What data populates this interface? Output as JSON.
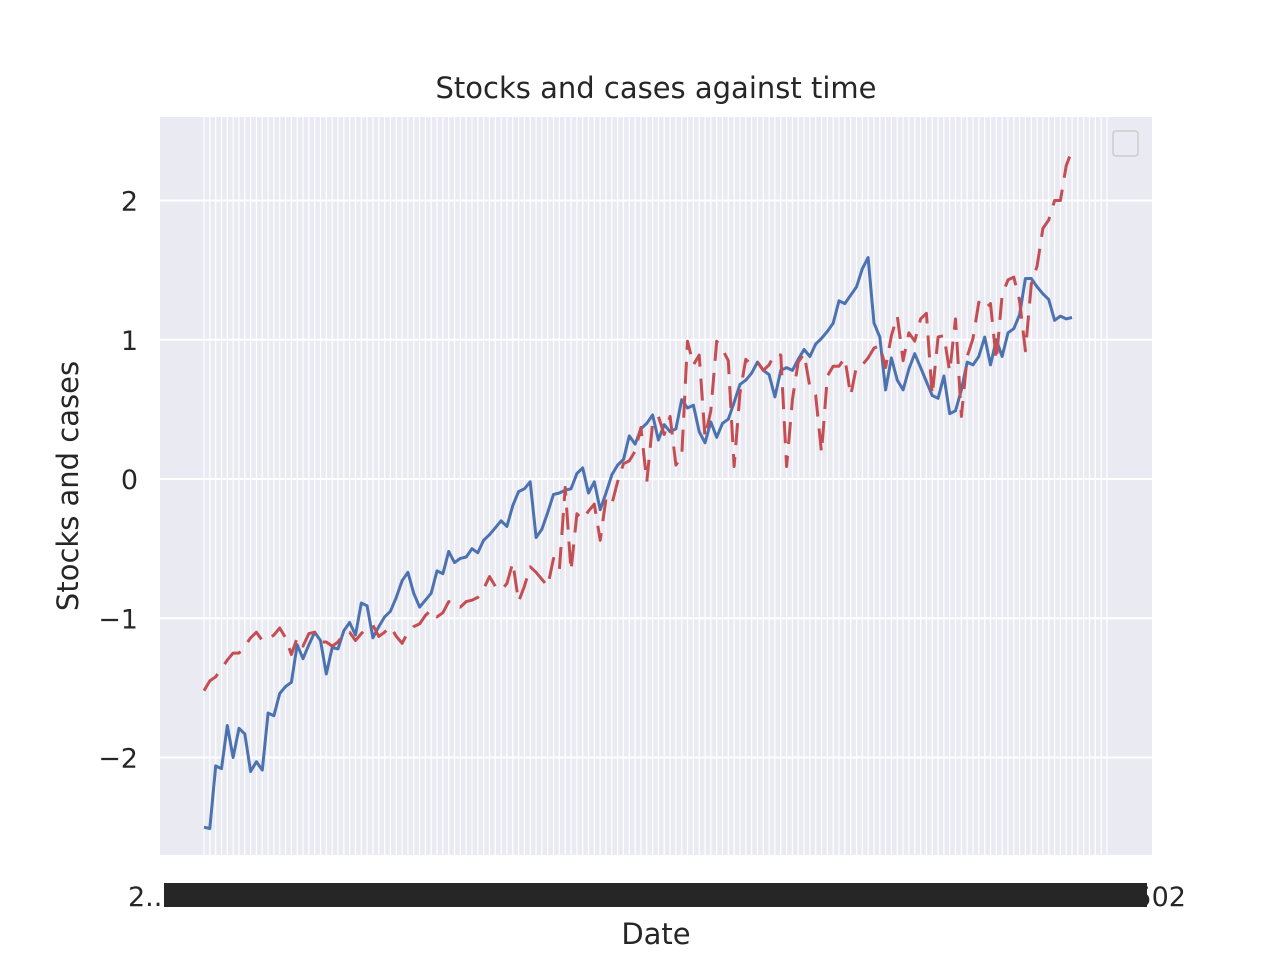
{
  "chart_data": {
    "type": "line",
    "title": "Stocks and cases against time",
    "xlabel": "Date",
    "ylabel": "Stocks and cases",
    "ylim": [
      -2.7,
      2.6
    ],
    "yticks": [
      -2,
      -1,
      0,
      1,
      2
    ],
    "ytick_labels": [
      "−2",
      "−1",
      "0",
      "1",
      "2"
    ],
    "grid": true,
    "legend": {
      "placement": "top-right",
      "entries": []
    },
    "x": {
      "count": 156,
      "first_label": "2...",
      "last_label": "...502",
      "note_overlap": true
    },
    "series": [
      {
        "color": "#4c72b0",
        "dashed": false,
        "values": [
          -2.5,
          -2.51,
          -2.06,
          -2.08,
          -1.77,
          -2.0,
          -1.79,
          -1.83,
          -2.1,
          -2.03,
          -2.09,
          -1.68,
          -1.7,
          -1.54,
          -1.49,
          -1.46,
          -1.19,
          -1.29,
          -1.19,
          -1.1,
          -1.16,
          -1.4,
          -1.21,
          -1.22,
          -1.09,
          -1.03,
          -1.12,
          -0.89,
          -0.91,
          -1.14,
          -1.06,
          -0.99,
          -0.95,
          -0.85,
          -0.73,
          -0.67,
          -0.82,
          -0.92,
          -0.87,
          -0.82,
          -0.66,
          -0.68,
          -0.52,
          -0.6,
          -0.57,
          -0.56,
          -0.5,
          -0.53,
          -0.44,
          -0.4,
          -0.35,
          -0.3,
          -0.34,
          -0.19,
          -0.09,
          -0.07,
          -0.02,
          -0.42,
          -0.36,
          -0.24,
          -0.11,
          -0.1,
          -0.08,
          -0.07,
          0.04,
          0.08,
          -0.1,
          -0.02,
          -0.22,
          -0.1,
          0.03,
          0.1,
          0.14,
          0.31,
          0.25,
          0.36,
          0.4,
          0.46,
          0.28,
          0.39,
          0.34,
          0.36,
          0.57,
          0.51,
          0.53,
          0.34,
          0.26,
          0.41,
          0.3,
          0.4,
          0.43,
          0.55,
          0.68,
          0.71,
          0.76,
          0.84,
          0.78,
          0.75,
          0.59,
          0.78,
          0.8,
          0.78,
          0.86,
          0.93,
          0.88,
          0.97,
          1.01,
          1.06,
          1.12,
          1.28,
          1.26,
          1.32,
          1.38,
          1.51,
          1.59,
          1.12,
          1.02,
          0.64,
          0.87,
          0.71,
          0.64,
          0.79,
          0.9,
          0.8,
          0.7,
          0.6,
          0.58,
          0.74,
          0.47,
          0.49,
          0.64,
          0.84,
          0.82,
          0.88,
          1.02,
          0.82,
          1.0,
          0.88,
          1.05,
          1.08,
          1.18,
          1.44,
          1.44,
          1.38,
          1.33,
          1.29,
          1.14,
          1.17,
          1.15,
          1.16
        ]
      },
      {
        "color": "#c44e52",
        "dashed": true,
        "values": [
          -1.52,
          -1.45,
          -1.42,
          -1.36,
          -1.3,
          -1.25,
          -1.25,
          -1.2,
          -1.14,
          -1.1,
          -1.16,
          -1.15,
          -1.12,
          -1.07,
          -1.14,
          -1.26,
          -1.14,
          -1.2,
          -1.11,
          -1.1,
          -1.17,
          -1.17,
          -1.2,
          -1.17,
          -1.11,
          -1.1,
          -1.16,
          -1.11,
          -1.07,
          -1.05,
          -1.13,
          -1.1,
          -1.06,
          -1.13,
          -1.18,
          -1.1,
          -1.06,
          -1.04,
          -0.98,
          -0.94,
          -0.99,
          -0.96,
          -0.88,
          -0.88,
          -0.92,
          -0.88,
          -0.87,
          -0.85,
          -0.79,
          -0.7,
          -0.77,
          -0.8,
          -0.75,
          -0.6,
          -0.88,
          -0.77,
          -0.63,
          -0.67,
          -0.72,
          -0.77,
          -0.57,
          -0.65,
          -0.06,
          -0.66,
          -0.25,
          -0.29,
          -0.23,
          -0.18,
          -0.44,
          -0.14,
          -0.18,
          -0.02,
          0.11,
          0.13,
          0.2,
          0.37,
          -0.02,
          0.4,
          0.45,
          0.32,
          0.45,
          0.1,
          0.16,
          0.99,
          0.82,
          0.89,
          0.3,
          0.49,
          0.99,
          0.93,
          0.85,
          0.09,
          0.62,
          0.86,
          0.82,
          0.84,
          0.78,
          0.82,
          0.9,
          0.89,
          0.09,
          0.57,
          0.84,
          0.9,
          0.66,
          0.6,
          0.19,
          0.74,
          0.81,
          0.81,
          0.87,
          0.6,
          0.81,
          0.82,
          0.87,
          0.94,
          0.96,
          0.8,
          1.03,
          1.17,
          0.85,
          1.05,
          0.99,
          1.15,
          1.19,
          0.6,
          1.02,
          1.03,
          0.77,
          1.15,
          0.45,
          0.88,
          1.01,
          1.27,
          1.22,
          1.26,
          0.85,
          1.32,
          1.43,
          1.45,
          1.28,
          0.92,
          1.4,
          1.53,
          1.8,
          1.86,
          2.0,
          2.0,
          2.25,
          2.36
        ]
      }
    ]
  }
}
